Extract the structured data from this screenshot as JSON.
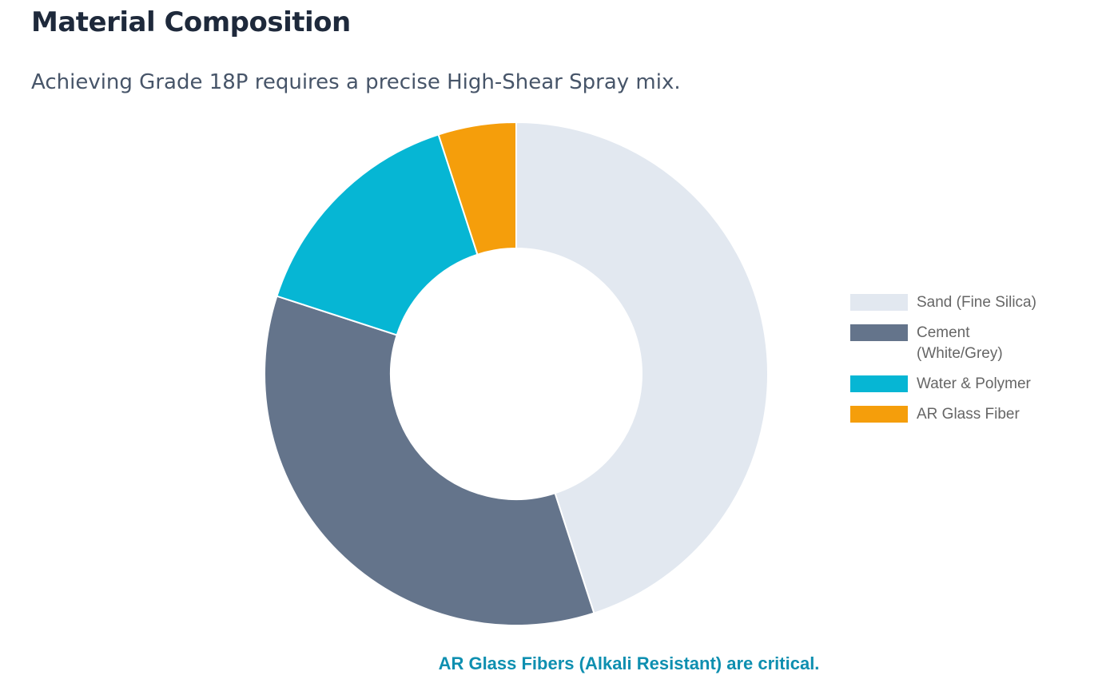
{
  "header": {
    "title": "Material Composition",
    "subtitle": "Achieving Grade 18P requires a precise High-Shear Spray mix."
  },
  "chart_data": {
    "type": "pie",
    "variant": "doughnut",
    "title": "Material Composition",
    "categories": [
      "Sand (Fine Silica)",
      "Cement (White/Grey)",
      "Water & Polymer",
      "AR Glass Fiber"
    ],
    "values": [
      45,
      35,
      15,
      5
    ],
    "colors": [
      "#e2e8f0",
      "#64748b",
      "#06b6d4",
      "#f59e0b"
    ],
    "legend_position": "right"
  },
  "footer": {
    "note": "AR Glass Fibers (Alkali Resistant) are critical."
  }
}
